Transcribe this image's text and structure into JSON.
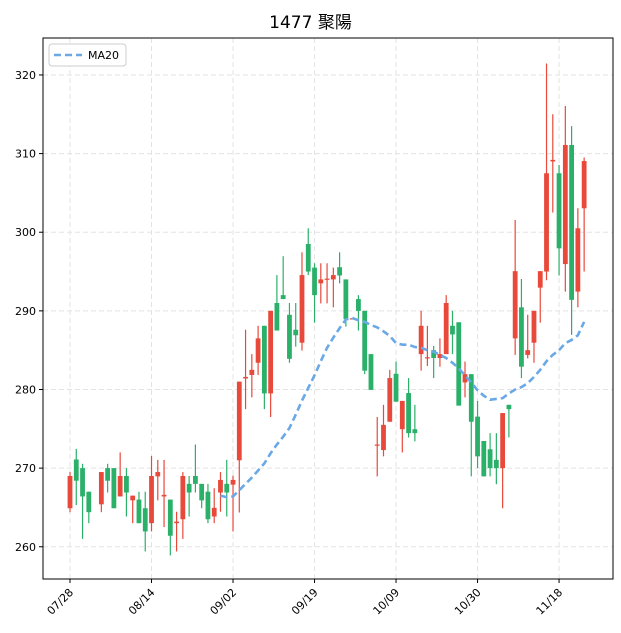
{
  "chart_data": {
    "type": "candlestick",
    "title": "1477 聚陽",
    "xlabel": "",
    "ylabel": "",
    "ylim": [
      255.9,
      324.7
    ],
    "yticks": [
      260,
      270,
      280,
      290,
      300,
      310,
      320
    ],
    "xticks": [
      {
        "index": 0,
        "label": "07/28"
      },
      {
        "index": 13,
        "label": "08/14"
      },
      {
        "index": 26,
        "label": "09/02"
      },
      {
        "index": 39,
        "label": "09/19"
      },
      {
        "index": 52,
        "label": "10/09"
      },
      {
        "index": 65,
        "label": "10/30"
      },
      {
        "index": 78,
        "label": "11/18"
      }
    ],
    "grid": true,
    "legend": {
      "position": "top-left",
      "entries": [
        "MA20"
      ]
    },
    "colors": {
      "up": "#e8493a",
      "down": "#2bb069",
      "ma": "#6aa8e6"
    },
    "ohlc_fields": [
      "open",
      "high",
      "low",
      "close"
    ],
    "candles": [
      [
        264.9,
        269.5,
        264.4,
        269.0
      ],
      [
        271.1,
        272.45,
        265.3,
        268.4
      ],
      [
        270.0,
        270.55,
        261.0,
        266.4
      ],
      [
        267.0,
        267.0,
        263.0,
        264.4
      ],
      null,
      [
        265.4,
        269.5,
        264.4,
        269.5
      ],
      [
        270.0,
        270.55,
        266.9,
        268.4
      ],
      [
        270.0,
        270.0,
        264.9,
        264.9
      ],
      [
        266.4,
        272.0,
        266.4,
        269.0
      ],
      [
        269.0,
        270.0,
        263.85,
        266.9
      ],
      [
        265.9,
        266.5,
        263.0,
        266.5
      ],
      [
        266.0,
        267.0,
        263.0,
        263.0
      ],
      [
        264.9,
        267.0,
        259.4,
        261.95
      ],
      [
        263.0,
        271.55,
        261.95,
        269.0
      ],
      [
        268.95,
        271.05,
        265.9,
        269.5
      ],
      [
        266.4,
        271.05,
        262.5,
        266.6
      ],
      [
        266.0,
        266.0,
        258.9,
        261.4
      ],
      [
        263.0,
        264.45,
        259.4,
        263.2
      ],
      [
        263.5,
        269.5,
        261.0,
        269.0
      ],
      [
        268.0,
        269.0,
        263.85,
        266.9
      ],
      [
        269.0,
        273.0,
        266.9,
        268.0
      ],
      [
        268.0,
        268.0,
        264.9,
        265.9
      ],
      [
        267.0,
        268.0,
        263.0,
        263.5
      ],
      [
        263.85,
        267.45,
        263.0,
        264.95
      ],
      [
        266.9,
        269.5,
        264.45,
        268.5
      ],
      [
        268.0,
        271.05,
        263.85,
        266.9
      ],
      [
        267.9,
        269.05,
        261.95,
        268.5
      ],
      [
        271.0,
        281.0,
        264.35,
        281.0
      ],
      [
        281.4,
        287.6,
        277.5,
        281.6
      ],
      [
        281.85,
        284.5,
        279.0,
        282.5
      ],
      [
        283.4,
        288.1,
        281.85,
        286.5
      ],
      [
        288.1,
        288.1,
        277.5,
        279.5
      ],
      [
        279.5,
        290.0,
        276.5,
        290.0
      ],
      [
        291.0,
        294.55,
        287.5,
        287.5
      ],
      [
        292.0,
        296.95,
        291.5,
        291.5
      ],
      [
        289.5,
        291.0,
        283.4,
        283.9
      ],
      [
        287.6,
        291.0,
        285.45,
        286.9
      ],
      [
        285.95,
        297.45,
        284.95,
        294.55
      ],
      [
        298.5,
        300.5,
        294.55,
        295.0
      ],
      [
        295.5,
        296.05,
        288.5,
        292.0
      ],
      [
        293.5,
        296.05,
        290.95,
        294.0
      ],
      [
        293.95,
        296.05,
        290.95,
        294.1
      ],
      [
        294.0,
        295.5,
        290.45,
        294.55
      ],
      [
        295.55,
        297.45,
        293.5,
        294.5
      ],
      [
        294.0,
        294.0,
        288.0,
        288.95
      ],
      [
        288.95,
        289.05,
        288.95,
        289.05
      ],
      [
        291.5,
        292.0,
        287.5,
        290.0
      ],
      [
        290.0,
        290.0,
        281.95,
        282.4
      ],
      [
        284.5,
        284.5,
        279.95,
        279.95
      ],
      [
        272.9,
        276.5,
        268.95,
        273.0
      ],
      [
        272.3,
        278.05,
        271.5,
        275.5
      ],
      [
        275.9,
        282.5,
        275.9,
        281.45
      ],
      [
        282.0,
        283.55,
        278.45,
        278.45
      ],
      [
        274.95,
        278.55,
        272.0,
        278.55
      ],
      [
        279.55,
        281.45,
        273.9,
        274.45
      ],
      [
        274.95,
        278.05,
        273.4,
        274.45
      ],
      [
        284.5,
        290.0,
        282.4,
        288.1
      ],
      [
        284.0,
        288.1,
        283.0,
        284.1
      ],
      [
        285.0,
        285.55,
        281.45,
        284.0
      ],
      [
        284.0,
        286.5,
        282.9,
        284.5
      ],
      [
        284.5,
        292.0,
        284.5,
        291.0
      ],
      [
        288.1,
        290.0,
        284.5,
        287.0
      ],
      [
        288.55,
        288.55,
        277.95,
        277.95
      ],
      [
        280.9,
        283.55,
        279.0,
        281.95
      ],
      [
        281.95,
        281.95,
        268.95,
        275.9
      ],
      [
        276.55,
        278.55,
        270.0,
        271.5
      ],
      [
        273.45,
        273.45,
        268.95,
        268.95
      ],
      [
        272.4,
        274.45,
        268.95,
        270.0
      ],
      [
        271.05,
        274.45,
        267.95,
        270.0
      ],
      [
        270.0,
        277.0,
        264.9,
        277.0
      ],
      [
        278.05,
        278.05,
        273.9,
        277.5
      ],
      [
        286.5,
        301.55,
        284.4,
        295.05
      ],
      [
        290.45,
        294.05,
        281.45,
        282.9
      ],
      [
        284.4,
        289.5,
        283.95,
        285.0
      ],
      [
        285.95,
        290.0,
        283.4,
        290.0
      ],
      [
        292.95,
        295.05,
        288.5,
        295.05
      ],
      [
        295.0,
        321.45,
        293.9,
        307.5
      ],
      [
        309.0,
        315.0,
        302.5,
        309.2
      ],
      [
        307.5,
        308.55,
        294.5,
        297.95
      ],
      [
        295.95,
        316.05,
        292.45,
        311.1
      ],
      [
        311.1,
        313.5,
        286.95,
        291.4
      ],
      [
        292.45,
        303.05,
        290.45,
        300.5
      ],
      [
        303.05,
        309.5,
        295.0,
        309.05
      ]
    ],
    "ma20": {
      "name": "MA20",
      "start_index": 24,
      "values": [
        266.5,
        266.3,
        266.4,
        267.2,
        268.0,
        268.8,
        269.7,
        270.6,
        271.9,
        273.0,
        274.0,
        275.1,
        276.8,
        278.6,
        280.2,
        281.8,
        283.6,
        285.3,
        286.6,
        287.8,
        288.9,
        289.1,
        288.8,
        288.6,
        288.2,
        287.9,
        287.4,
        286.8,
        285.9,
        285.7,
        285.7,
        285.4,
        285.3,
        285.0,
        284.8,
        284.4,
        284.0,
        283.4,
        282.7,
        281.8,
        280.9,
        279.9,
        279.2,
        278.7,
        278.8,
        278.9,
        279.5,
        280.0,
        280.3,
        280.8,
        281.6,
        282.5,
        283.6,
        284.4,
        285.0,
        285.9,
        286.3,
        286.9,
        288.6
      ]
    }
  }
}
